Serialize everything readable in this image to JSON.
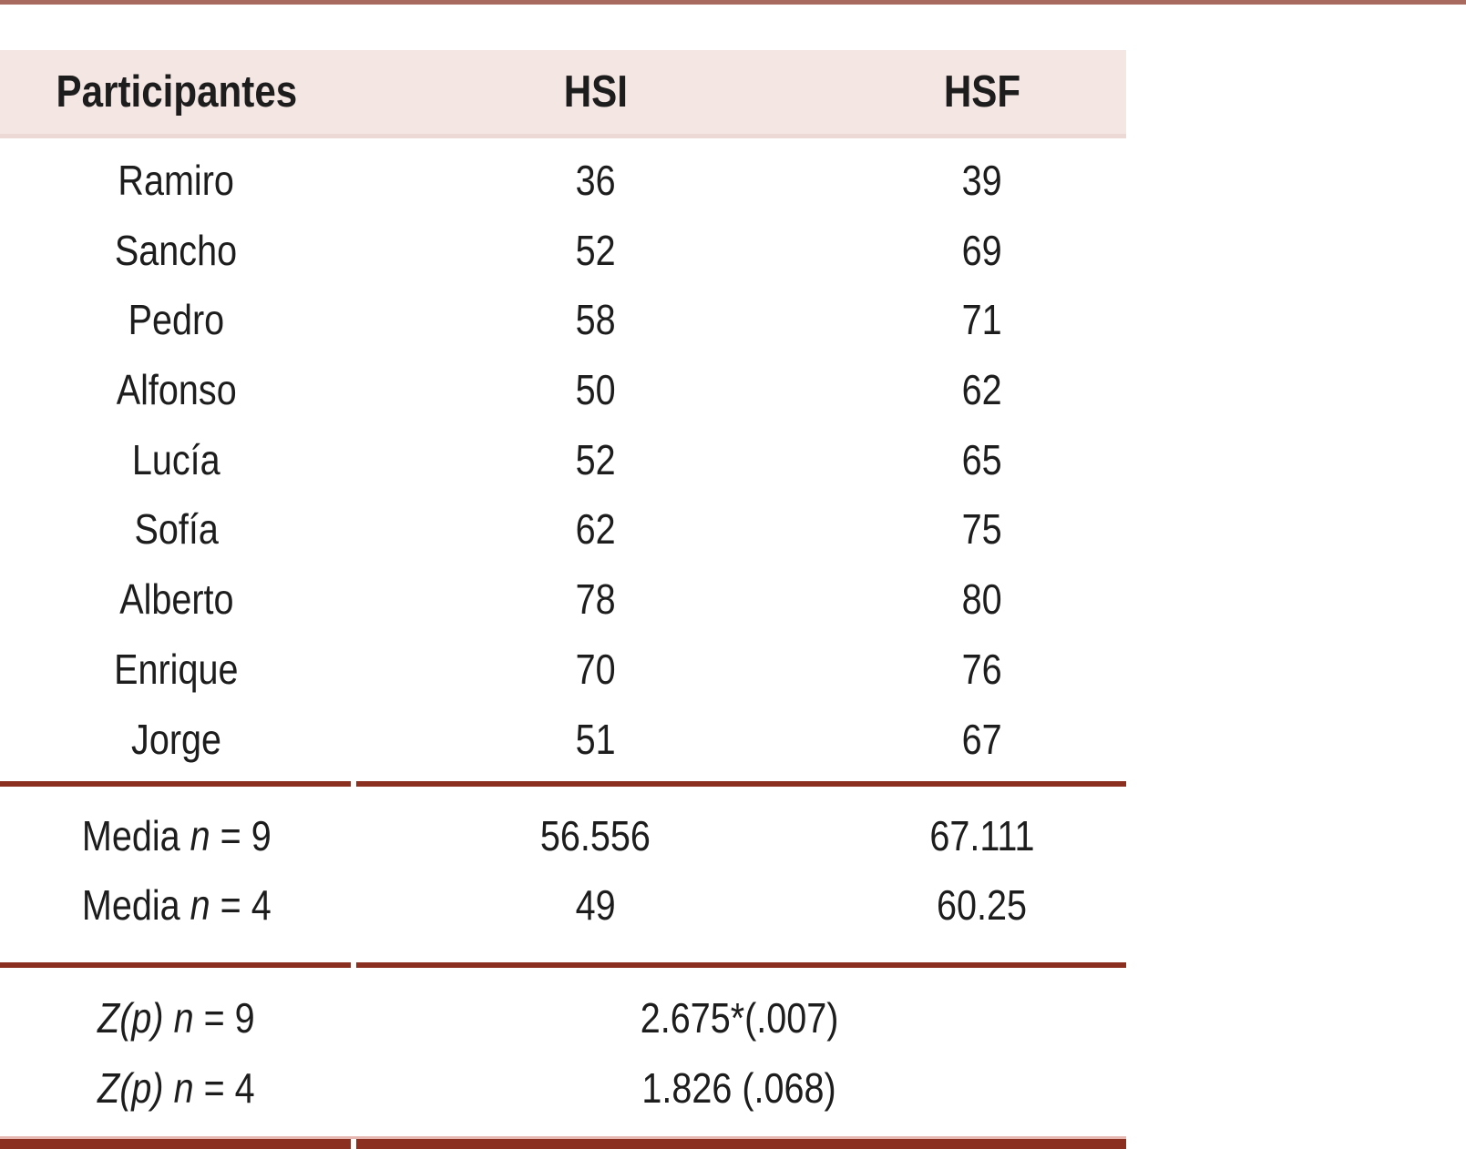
{
  "chart_data": {
    "type": "table",
    "title": "",
    "columns": [
      "Participantes",
      "HSI",
      "HSF"
    ],
    "rows": [
      [
        "Ramiro",
        36,
        39
      ],
      [
        "Sancho",
        52,
        69
      ],
      [
        "Pedro",
        58,
        71
      ],
      [
        "Alfonso",
        50,
        62
      ],
      [
        "Lucía",
        52,
        65
      ],
      [
        "Sofía",
        62,
        75
      ],
      [
        "Alberto",
        78,
        80
      ],
      [
        "Enrique",
        70,
        76
      ],
      [
        "Jorge",
        51,
        67
      ]
    ],
    "summary": {
      "media_n9": {
        "HSI": 56.556,
        "HSF": 67.111
      },
      "media_n4": {
        "HSI": 49,
        "HSF": 60.25
      },
      "z_n9": "2.675*(.007)",
      "z_n4": "1.826 (.068)"
    }
  },
  "table": {
    "headers": {
      "participants": "Participantes",
      "hsi": "HSI",
      "hsf": "HSF"
    },
    "participants": [
      {
        "name": "Ramiro",
        "hsi": "36",
        "hsf": "39"
      },
      {
        "name": "Sancho",
        "hsi": "52",
        "hsf": "69"
      },
      {
        "name": "Pedro",
        "hsi": "58",
        "hsf": "71"
      },
      {
        "name": "Alfonso",
        "hsi": "50",
        "hsf": "62"
      },
      {
        "name": "Lucía",
        "hsi": "52",
        "hsf": "65"
      },
      {
        "name": "Sofía",
        "hsi": "62",
        "hsf": "75"
      },
      {
        "name": "Alberto",
        "hsi": "78",
        "hsf": "80"
      },
      {
        "name": "Enrique",
        "hsi": "70",
        "hsf": "76"
      },
      {
        "name": "Jorge",
        "hsi": "51",
        "hsf": "67"
      }
    ],
    "stats": {
      "media9": {
        "word": "Media",
        "var": "n",
        "eq": "= 9",
        "hsi": "56.556",
        "hsf": "67.111"
      },
      "media4": {
        "word": "Media",
        "var": "n",
        "eq": "= 4",
        "hsi": "49",
        "hsf": "60.25"
      },
      "z9": {
        "zp": "Z(p)",
        "var": "n",
        "eq": "= 9",
        "value": "2.675*(.007)"
      },
      "z4": {
        "zp": "Z(p)",
        "var": "n",
        "eq": "= 4",
        "value": "1.826 (.068)"
      }
    },
    "colors": {
      "accent_rule": "#a86a5e",
      "separator": "#8b2f20",
      "header_bg": "#f4e6e2",
      "header_border": "#ecd8d4",
      "bottom_light": "#e5b7b0",
      "text": "#1d1d1d"
    }
  }
}
